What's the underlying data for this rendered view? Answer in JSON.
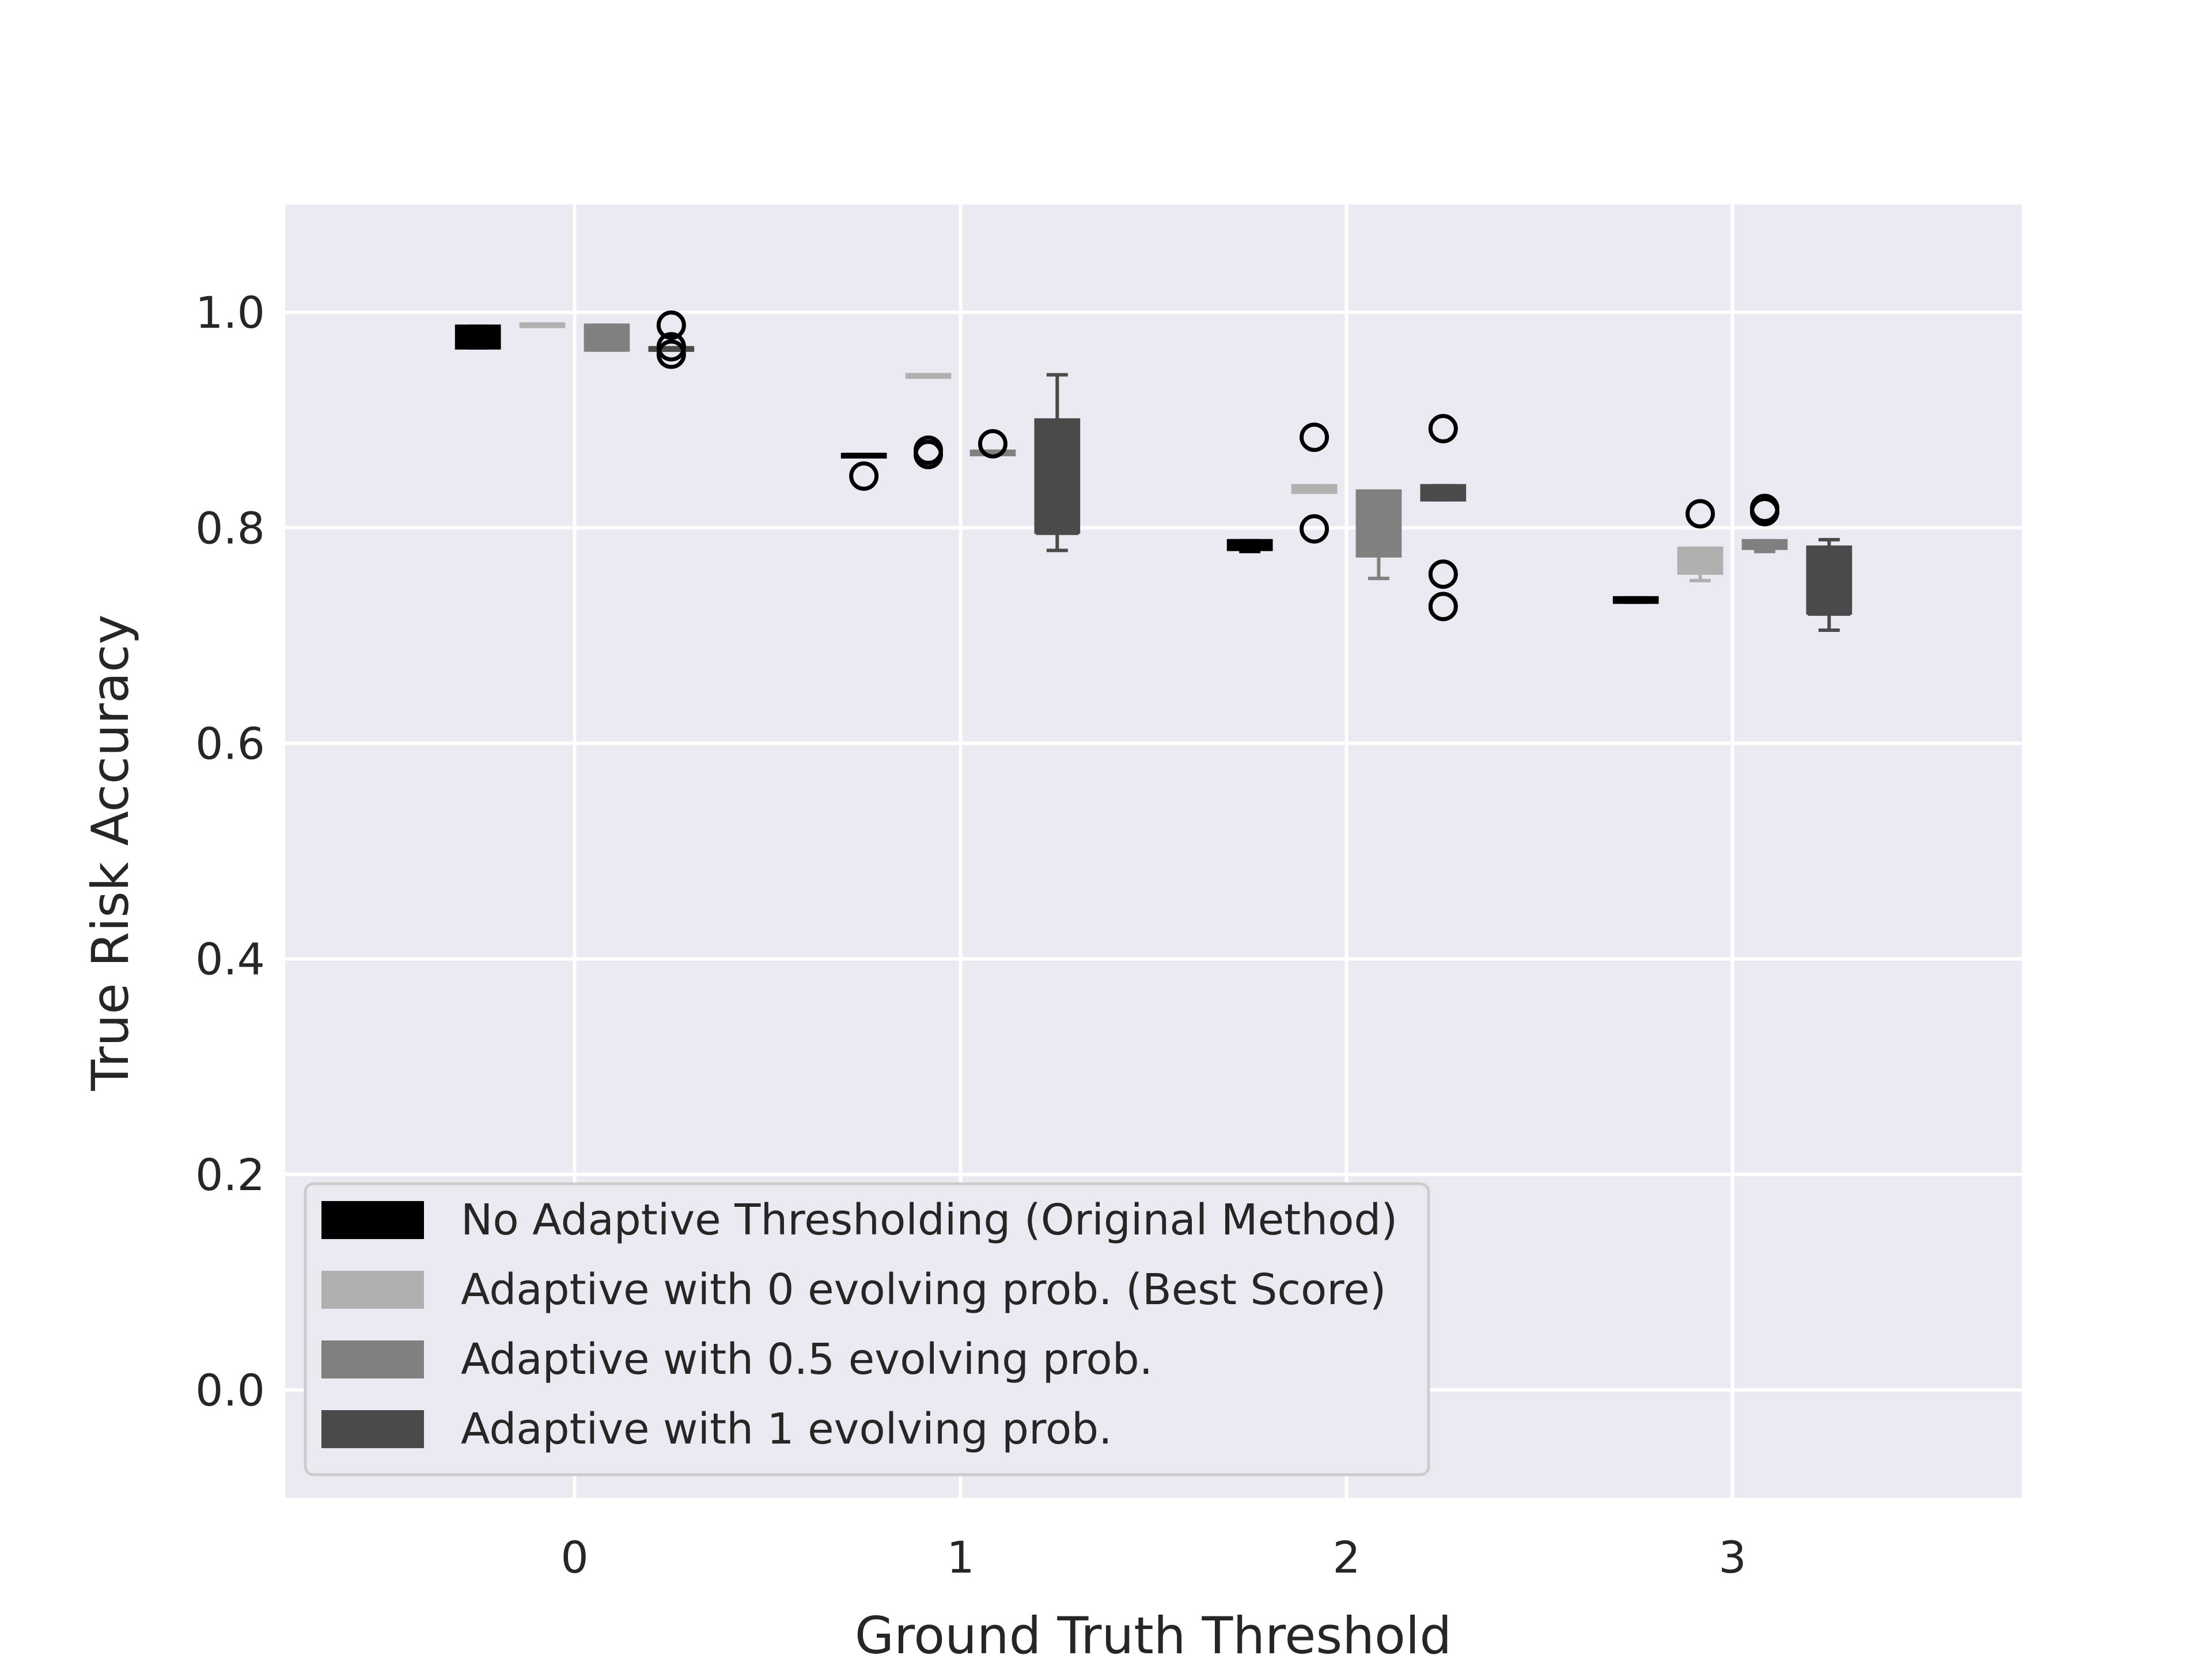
{
  "chart_data": {
    "type": "box",
    "xlabel": "Ground Truth Threshold",
    "ylabel": "True Risk Accuracy",
    "ylim": [
      -0.1,
      1.1
    ],
    "xlim": [
      -0.75,
      3.75
    ],
    "categories": [
      "0",
      "1",
      "2",
      "3"
    ],
    "xticks": [
      "0",
      "1",
      "2",
      "3"
    ],
    "yticks": [
      "0.0",
      "0.2",
      "0.4",
      "0.6",
      "0.8",
      "1.0"
    ],
    "grid": true,
    "legend_position": "bottom-left",
    "series": [
      {
        "name": "No Adaptive Thresholding (Original Method)",
        "color": "#000000",
        "boxes": [
          {
            "category": "0",
            "whislo": 0.967,
            "q1": 0.967,
            "median": 0.977,
            "q3": 0.987,
            "whishi": 0.987,
            "fliers": []
          },
          {
            "category": "1",
            "whislo": 0.866,
            "q1": 0.866,
            "median": 0.867,
            "q3": 0.868,
            "whishi": 0.868,
            "fliers": [
              0.848
            ]
          },
          {
            "category": "2",
            "whislo": 0.778,
            "q1": 0.78,
            "median": 0.782,
            "q3": 0.788,
            "whishi": 0.788,
            "fliers": []
          },
          {
            "category": "3",
            "whislo": 0.731,
            "q1": 0.731,
            "median": 0.733,
            "q3": 0.735,
            "whishi": 0.735,
            "fliers": []
          }
        ]
      },
      {
        "name": "Adaptive with 0 evolving prob. (Best Score)",
        "color": "#b0b0b0",
        "boxes": [
          {
            "category": "0",
            "whislo": 0.987,
            "q1": 0.987,
            "median": 0.988,
            "q3": 0.989,
            "whishi": 0.989,
            "fliers": []
          },
          {
            "category": "1",
            "whislo": 0.94,
            "q1": 0.94,
            "median": 0.941,
            "q3": 0.942,
            "whishi": 0.942,
            "fliers": [
              0.872,
              0.868
            ]
          },
          {
            "category": "2",
            "whislo": 0.833,
            "q1": 0.833,
            "median": 0.836,
            "q3": 0.839,
            "whishi": 0.839,
            "fliers": [
              0.884,
              0.799
            ]
          },
          {
            "category": "3",
            "whislo": 0.751,
            "q1": 0.758,
            "median": 0.778,
            "q3": 0.781,
            "whishi": 0.781,
            "fliers": [
              0.813
            ]
          }
        ]
      },
      {
        "name": "Adaptive with 0.5 evolving prob.",
        "color": "#808080",
        "boxes": [
          {
            "category": "0",
            "whislo": 0.965,
            "q1": 0.965,
            "median": 0.966,
            "q3": 0.988,
            "whishi": 0.988,
            "fliers": []
          },
          {
            "category": "1",
            "whislo": 0.868,
            "q1": 0.868,
            "median": 0.869,
            "q3": 0.871,
            "whishi": 0.871,
            "fliers": [
              0.878
            ]
          },
          {
            "category": "2",
            "whislo": 0.753,
            "q1": 0.774,
            "median": 0.833,
            "q3": 0.834,
            "whishi": 0.834,
            "fliers": []
          },
          {
            "category": "3",
            "whislo": 0.778,
            "q1": 0.781,
            "median": 0.784,
            "q3": 0.788,
            "whishi": 0.788,
            "fliers": [
              0.818,
              0.815
            ]
          }
        ]
      },
      {
        "name": "Adaptive with 1 evolving prob.",
        "color": "#4a4a4a",
        "boxes": [
          {
            "category": "0",
            "whislo": 0.965,
            "q1": 0.965,
            "median": 0.966,
            "q3": 0.967,
            "whishi": 0.967,
            "fliers": [
              0.988,
              0.968,
              0.961
            ]
          },
          {
            "category": "1",
            "whislo": 0.779,
            "q1": 0.796,
            "median": 0.796,
            "q3": 0.9,
            "whishi": 0.942,
            "fliers": []
          },
          {
            "category": "2",
            "whislo": 0.826,
            "q1": 0.826,
            "median": 0.829,
            "q3": 0.839,
            "whishi": 0.839,
            "fliers": [
              0.892,
              0.757,
              0.727
            ]
          },
          {
            "category": "3",
            "whislo": 0.705,
            "q1": 0.721,
            "median": 0.721,
            "q3": 0.782,
            "whishi": 0.789,
            "fliers": []
          }
        ]
      }
    ]
  }
}
